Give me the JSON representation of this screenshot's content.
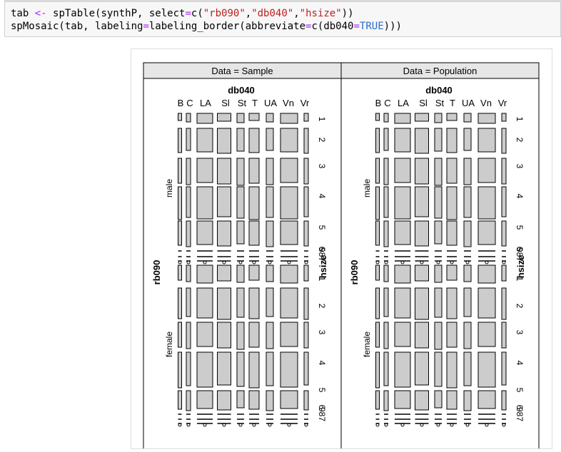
{
  "code": {
    "line1": {
      "var": "tab",
      "assign": " <- ",
      "fn": "spTable(synthP, select",
      "eq": "=",
      "c_open": "c(",
      "s1": "\"rb090\"",
      "comma1": ",",
      "s2": "\"db040\"",
      "comma2": ",",
      "s3": "\"hsize\"",
      "close": "))"
    },
    "line2": {
      "fn": "spMosaic(tab, labeling",
      "eq1": "=",
      "mid": "labeling_border(abbreviate",
      "eq2": "=",
      "c_open": "c(db040",
      "eq3": "=",
      "true_kw": "TRUE",
      "close": ")))"
    }
  },
  "plot": {
    "panels": [
      {
        "header": "Data = Sample"
      },
      {
        "header": "Data = Population"
      }
    ],
    "top_var": "db040",
    "top_levels": [
      "B",
      "C",
      "LA",
      "Sl",
      "St",
      "T",
      "UA",
      "Vn",
      "Vr"
    ],
    "left_var": "rb090",
    "left_levels": [
      "male",
      "female"
    ],
    "right_var": "hsize",
    "right_levels": [
      "1",
      "2",
      "3",
      "4",
      "5",
      "6",
      "7",
      "8",
      "9"
    ],
    "right_levels_shown": [
      "1",
      "2",
      "3",
      "4",
      "5",
      "6",
      "987"
    ],
    "colors": {
      "tile": "#cccccc",
      "panel_header": "#e6e6e6",
      "border": "#000000"
    }
  }
}
